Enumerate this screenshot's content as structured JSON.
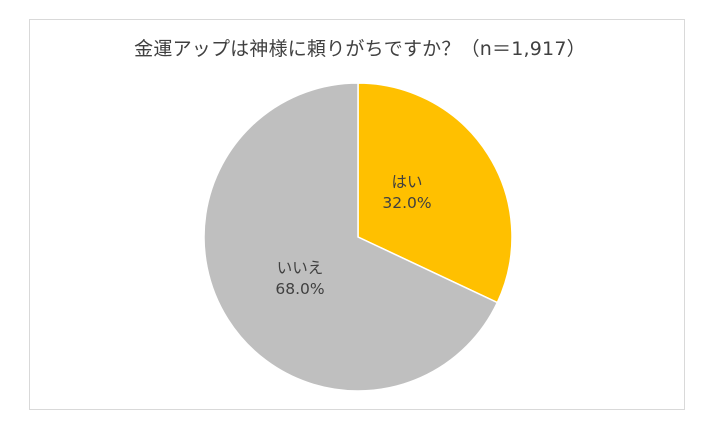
{
  "chart_data": {
    "type": "pie",
    "title": "金運アップは神様に頼りがちですか？（n＝1,917）",
    "n": 1917,
    "categories": [
      "はい",
      "いいえ"
    ],
    "values": [
      32.0,
      68.0
    ],
    "value_labels": [
      "32.0%",
      "68.0%"
    ],
    "colors": [
      "#FFC000",
      "#BFBFBF"
    ],
    "start_angle_deg": 0,
    "direction": "clockwise",
    "legend": "none (labels inside slices)"
  },
  "labels": {
    "yes_name": "はい",
    "yes_pct": "32.0%",
    "no_name": "いいえ",
    "no_pct": "68.0%"
  }
}
